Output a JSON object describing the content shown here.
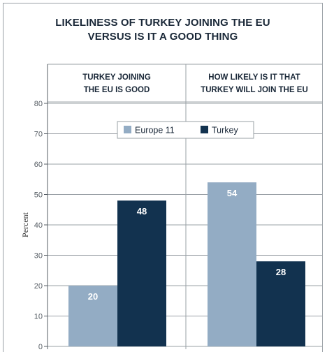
{
  "chart_data": {
    "type": "bar",
    "title": [
      "LIKELINESS OF TURKEY JOINING THE EU",
      "VERSUS IS IT A GOOD THING"
    ],
    "ylabel": "Percent",
    "ylim": [
      0,
      80
    ],
    "yticks": [
      0,
      10,
      20,
      30,
      40,
      50,
      60,
      70,
      80
    ],
    "grid": true,
    "legend_position": "top-center",
    "categories": [
      [
        "TURKEY JOINING",
        "THE EU IS GOOD"
      ],
      [
        "HOW LIKELY IS IT THAT",
        "TURKEY WILL JOIN THE EU"
      ]
    ],
    "series": [
      {
        "name": "Europe 11",
        "values": [
          20,
          54
        ],
        "color": "#93acc4"
      },
      {
        "name": "Turkey",
        "values": [
          48,
          28
        ],
        "color": "#12324f"
      }
    ]
  }
}
